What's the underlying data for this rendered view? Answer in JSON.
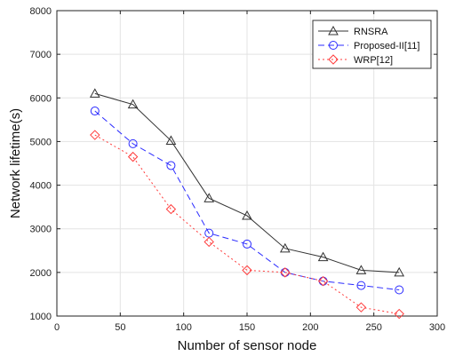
{
  "chart_data": {
    "type": "line",
    "title": "",
    "xlabel": "Number of sensor node",
    "ylabel": "Network lifetime(s)",
    "xlim": [
      0,
      300
    ],
    "ylim": [
      1000,
      8000
    ],
    "xticks": [
      0,
      50,
      100,
      150,
      200,
      250,
      300
    ],
    "yticks": [
      1000,
      2000,
      3000,
      4000,
      5000,
      6000,
      7000,
      8000
    ],
    "grid": true,
    "legend_position": "top-right",
    "x": [
      30,
      60,
      90,
      120,
      150,
      180,
      210,
      240,
      270
    ],
    "series": [
      {
        "name": "RNSRA",
        "values": [
          6100,
          5850,
          5020,
          3700,
          3300,
          2550,
          2350,
          2050,
          2000
        ],
        "color": "#333333",
        "line_style": "solid",
        "marker": "triangle"
      },
      {
        "name": "Proposed-II[11]",
        "values": [
          5700,
          4950,
          4450,
          2900,
          2650,
          2000,
          1800,
          1700,
          1600
        ],
        "color": "#2b2bff",
        "line_style": "dashed",
        "marker": "circle"
      },
      {
        "name": "WRP[12]",
        "values": [
          5150,
          4650,
          3450,
          2700,
          2050,
          2000,
          1800,
          1200,
          1050
        ],
        "color": "#ff3b3b",
        "line_style": "dotted",
        "marker": "diamond"
      }
    ]
  }
}
